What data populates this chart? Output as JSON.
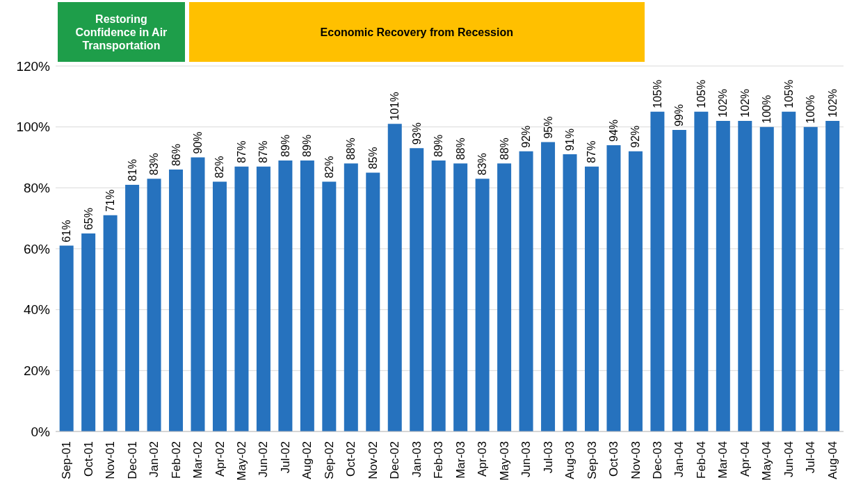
{
  "chart_data": {
    "type": "bar",
    "categories": [
      "Sep-01",
      "Oct-01",
      "Nov-01",
      "Dec-01",
      "Jan-02",
      "Feb-02",
      "Mar-02",
      "Apr-02",
      "May-02",
      "Jun-02",
      "Jul-02",
      "Aug-02",
      "Sep-02",
      "Oct-02",
      "Nov-02",
      "Dec-02",
      "Jan-03",
      "Feb-03",
      "Mar-03",
      "Apr-03",
      "May-03",
      "Jun-03",
      "Jul-03",
      "Aug-03",
      "Sep-03",
      "Oct-03",
      "Nov-03",
      "Dec-03",
      "Jan-04",
      "Feb-04",
      "Mar-04",
      "Apr-04",
      "May-04",
      "Jun-04",
      "Jul-04",
      "Aug-04"
    ],
    "values": [
      61,
      65,
      71,
      81,
      83,
      86,
      90,
      82,
      87,
      87,
      89,
      89,
      82,
      88,
      85,
      101,
      93,
      89,
      88,
      83,
      88,
      92,
      95,
      91,
      87,
      94,
      92,
      105,
      99,
      105,
      102,
      102,
      100,
      105,
      100,
      102
    ],
    "value_labels": [
      "61%",
      "65%",
      "71%",
      "81%",
      "83%",
      "86%",
      "90%",
      "82%",
      "87%",
      "87%",
      "89%",
      "89%",
      "82%",
      "88%",
      "85%",
      "101%",
      "93%",
      "89%",
      "88%",
      "83%",
      "88%",
      "92%",
      "95%",
      "91%",
      "87%",
      "94%",
      "92%",
      "105%",
      "99%",
      "105%",
      "102%",
      "102%",
      "100%",
      "105%",
      "100%",
      "102%"
    ],
    "color": "#2672be",
    "ylim": [
      0,
      120
    ],
    "yticks": [
      {
        "value": 0,
        "label": "0%"
      },
      {
        "value": 20,
        "label": "20%"
      },
      {
        "value": 40,
        "label": "40%"
      },
      {
        "value": 60,
        "label": "60%"
      },
      {
        "value": 80,
        "label": "80%"
      },
      {
        "value": 100,
        "label": "100%"
      },
      {
        "value": 120,
        "label": "120%"
      }
    ],
    "grid": "y",
    "annotations": [
      "Restoring Confidence in Air Transportation",
      "Economic Recovery from Recession"
    ]
  }
}
